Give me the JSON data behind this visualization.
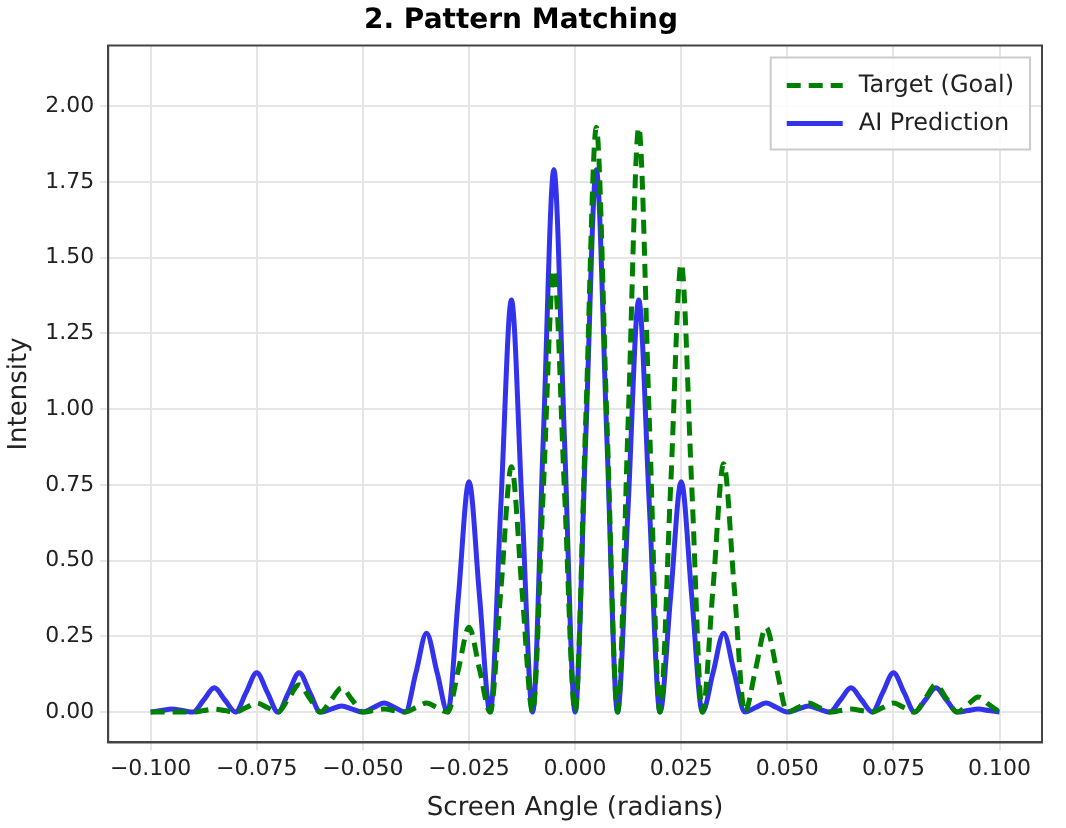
{
  "chart_data": {
    "type": "line",
    "title": "2. Pattern Matching",
    "xlabel": "Screen Angle (radians)",
    "ylabel": "Intensity",
    "x": [
      -0.1,
      -0.0975,
      -0.095,
      -0.0925,
      -0.09,
      -0.0875,
      -0.085,
      -0.0825,
      -0.08,
      -0.0775,
      -0.075,
      -0.0725,
      -0.07,
      -0.0675,
      -0.065,
      -0.0625,
      -0.06,
      -0.0575,
      -0.055,
      -0.0525,
      -0.05,
      -0.0475,
      -0.045,
      -0.0425,
      -0.04,
      -0.0375,
      -0.035,
      -0.0325,
      -0.03,
      -0.0275,
      -0.025,
      -0.0225,
      -0.02,
      -0.0175,
      -0.015,
      -0.0125,
      -0.01,
      -0.0075,
      -0.005,
      -0.0025,
      0,
      0.0025,
      0.005,
      0.0075,
      0.01,
      0.0125,
      0.015,
      0.0175,
      0.02,
      0.0225,
      0.025,
      0.0275,
      0.03,
      0.0325,
      0.035,
      0.0375,
      0.04,
      0.0425,
      0.045,
      0.0475,
      0.05,
      0.0525,
      0.055,
      0.0575,
      0.06,
      0.0625,
      0.065,
      0.0675,
      0.07,
      0.0725,
      0.075,
      0.0775,
      0.08,
      0.0825,
      0.085,
      0.0875,
      0.09,
      0.0925,
      0.095,
      0.0975,
      0.1
    ],
    "series": [
      {
        "name": "Target (Goal)",
        "color": "#008000",
        "line_style": "dashed",
        "values": [
          0,
          0,
          0,
          0,
          0,
          0.005,
          0.01,
          0.005,
          0,
          0.015,
          0.03,
          0.015,
          0,
          0.045,
          0.09,
          0.045,
          0,
          0.04,
          0.08,
          0.04,
          0,
          0.005,
          0.01,
          0.005,
          0,
          0.015,
          0.03,
          0.015,
          0,
          0.14,
          0.28,
          0.14,
          0,
          0.4,
          0.81,
          0.4,
          0,
          0.73,
          1.46,
          0.73,
          0,
          0.96,
          1.93,
          0.96,
          0,
          0.96,
          1.93,
          0.96,
          0,
          0.74,
          1.48,
          0.74,
          0,
          0.41,
          0.82,
          0.41,
          0,
          0.14,
          0.28,
          0.14,
          0,
          0.015,
          0.03,
          0.015,
          0,
          0.005,
          0.01,
          0.005,
          0,
          0.015,
          0.03,
          0.015,
          0,
          0.045,
          0.09,
          0.045,
          0,
          0.025,
          0.05,
          0.025,
          0
        ]
      },
      {
        "name": "AI Prediction",
        "color": "#3333ee",
        "line_style": "solid",
        "values": [
          0,
          0.005,
          0.01,
          0.005,
          0,
          0.04,
          0.08,
          0.04,
          0,
          0.065,
          0.13,
          0.065,
          0,
          0.065,
          0.13,
          0.065,
          0,
          0.01,
          0.02,
          0.01,
          0,
          0.015,
          0.03,
          0.015,
          0,
          0.13,
          0.26,
          0.13,
          0,
          0.38,
          0.76,
          0.38,
          0,
          0.68,
          1.36,
          0.68,
          0,
          0.9,
          1.79,
          0.9,
          0,
          0.9,
          1.79,
          0.9,
          0,
          0.68,
          1.36,
          0.68,
          0,
          0.38,
          0.76,
          0.38,
          0,
          0.13,
          0.26,
          0.13,
          0,
          0.015,
          0.03,
          0.015,
          0,
          0.01,
          0.02,
          0.01,
          0,
          0.04,
          0.08,
          0.04,
          0,
          0.065,
          0.13,
          0.065,
          0,
          0.04,
          0.08,
          0.04,
          0,
          0.005,
          0.01,
          0.005,
          0
        ]
      }
    ],
    "xlim": [
      -0.11,
      0.11
    ],
    "xticks": [
      {
        "value": -0.1,
        "label": "−0.100"
      },
      {
        "value": -0.075,
        "label": "−0.075"
      },
      {
        "value": -0.05,
        "label": "−0.050"
      },
      {
        "value": -0.025,
        "label": "−0.025"
      },
      {
        "value": 0,
        "label": "0.000"
      },
      {
        "value": 0.025,
        "label": "0.025"
      },
      {
        "value": 0.05,
        "label": "0.050"
      },
      {
        "value": 0.075,
        "label": "0.075"
      },
      {
        "value": 0.1,
        "label": "0.100"
      }
    ],
    "ylim": [
      -0.1,
      2.2
    ],
    "yticks": [
      {
        "value": 0,
        "label": "0.00"
      },
      {
        "value": 0.25,
        "label": "0.25"
      },
      {
        "value": 0.5,
        "label": "0.50"
      },
      {
        "value": 0.75,
        "label": "0.75"
      },
      {
        "value": 1,
        "label": "1.00"
      },
      {
        "value": 1.25,
        "label": "1.25"
      },
      {
        "value": 1.5,
        "label": "1.50"
      },
      {
        "value": 1.75,
        "label": "1.75"
      },
      {
        "value": 2,
        "label": "2.00"
      }
    ],
    "grid": true,
    "legend": "top right",
    "marker": "none"
  }
}
